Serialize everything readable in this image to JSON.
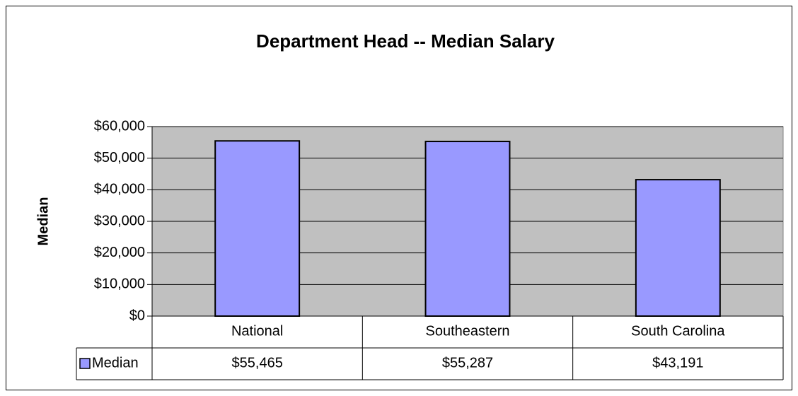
{
  "chart_data": {
    "type": "bar",
    "title": "Department Head -- Median Salary",
    "ylabel": "Median",
    "categories": [
      "National",
      "Southeastern",
      "South Carolina"
    ],
    "series": [
      {
        "name": "Median",
        "color": "#9999ff",
        "values": [
          55465,
          55287,
          43191
        ],
        "value_labels": [
          "$55,465",
          "$55,287",
          "$43,191"
        ]
      }
    ],
    "ylim": [
      0,
      60000
    ],
    "yticks": [
      {
        "value": 0,
        "label": "$0"
      },
      {
        "value": 10000,
        "label": "$10,000"
      },
      {
        "value": 20000,
        "label": "$20,000"
      },
      {
        "value": 30000,
        "label": "$30,000"
      },
      {
        "value": 40000,
        "label": "$40,000"
      },
      {
        "value": 50000,
        "label": "$50,000"
      },
      {
        "value": 60000,
        "label": "$60,000"
      }
    ],
    "grid": true,
    "plot_background": "#c0c0c0"
  }
}
